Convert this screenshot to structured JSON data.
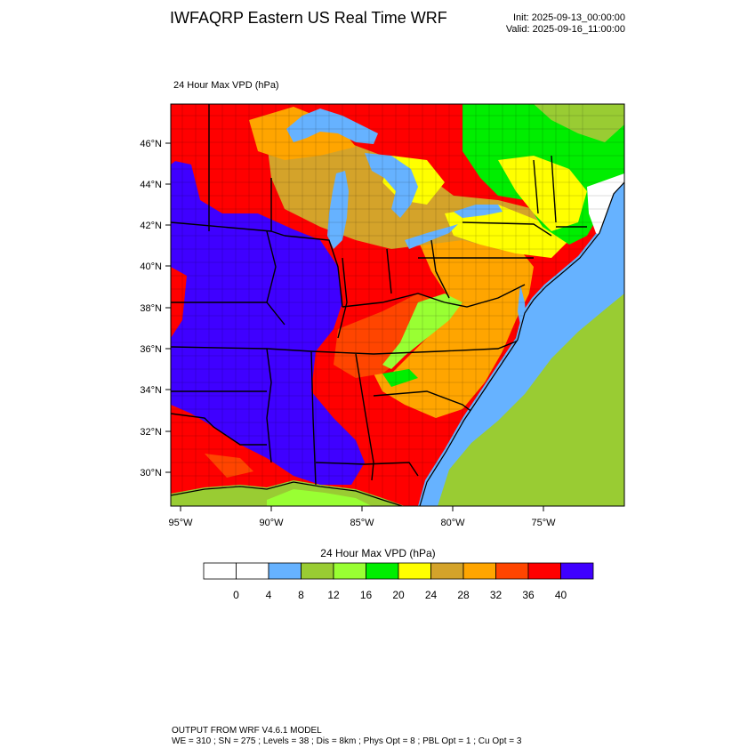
{
  "header": {
    "title": "IWFAQRP Eastern US Real Time WRF",
    "init": "Init: 2025-09-13_00:00:00",
    "valid": "Valid: 2025-09-16_11:00:00"
  },
  "plot": {
    "label": "24 Hour Max VPD   (hPa)",
    "lat_labels": [
      "46°N",
      "44°N",
      "42°N",
      "40°N",
      "38°N",
      "36°N",
      "34°N",
      "32°N",
      "30°N"
    ],
    "lon_labels": [
      "95°W",
      "90°W",
      "85°W",
      "80°W",
      "75°W"
    ]
  },
  "colorbar": {
    "title": "24 Hour Max VPD  (hPa)",
    "tick_labels": [
      "0",
      "4",
      "8",
      "12",
      "16",
      "20",
      "24",
      "28",
      "32",
      "36",
      "40"
    ],
    "colors": [
      "#ffffff",
      "#ffffff",
      "#66b2ff",
      "#99cc33",
      "#99ff33",
      "#00ee00",
      "#ffff00",
      "#d4a32a",
      "#ffa500",
      "#ff4500",
      "#ff0000",
      "#3f00ff"
    ]
  },
  "footer": {
    "line1": "OUTPUT FROM WRF V4.6.1 MODEL",
    "line2": "WE = 310 ; SN = 275 ; Levels = 38 ; Dis = 8km ; Phys Opt = 8 ; PBL Opt = 1 ; Cu Opt = 3"
  }
}
